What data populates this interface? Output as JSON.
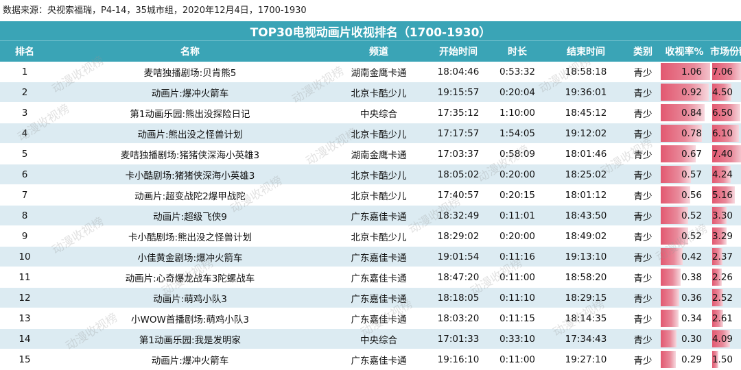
{
  "source": "数据来源：央视索福瑞，P4-14，35城市组，2020年12月4日，1700-1930",
  "title": "TOP30电视动画片收视排名（1700-1930）",
  "watermark": "动漫收视榜",
  "columns": {
    "rank": "排名",
    "name": "名称",
    "channel": "频道",
    "start": "开始时间",
    "duration": "时长",
    "end": "结束时间",
    "category": "类别",
    "rating": "收视率%",
    "share": "市场份额%"
  },
  "colors": {
    "header": "#3aa4b6",
    "stripe": "#dcebf2",
    "bar": "#e25870"
  },
  "rows": [
    {
      "rank": "1",
      "name": "麦咭独播剧场:贝肯熊5",
      "channel": "湖南金鹰卡通",
      "start": "18:04:46",
      "duration": "0:53:32",
      "end": "18:58:18",
      "category": "青少",
      "rating": "1.06",
      "share": "7.06"
    },
    {
      "rank": "2",
      "name": "动画片:爆冲火箭车",
      "channel": "北京卡酷少儿",
      "start": "19:15:57",
      "duration": "0:20:04",
      "end": "19:36:01",
      "category": "青少",
      "rating": "0.92",
      "share": "4.50"
    },
    {
      "rank": "3",
      "name": "第1动画乐园:熊出没探险日记",
      "channel": "中央综合",
      "start": "17:35:12",
      "duration": "1:10:00",
      "end": "18:45:12",
      "category": "青少",
      "rating": "0.84",
      "share": "6.50"
    },
    {
      "rank": "4",
      "name": "动画片:熊出没之怪兽计划",
      "channel": "北京卡酷少儿",
      "start": "17:17:57",
      "duration": "1:54:05",
      "end": "19:12:02",
      "category": "青少",
      "rating": "0.78",
      "share": "6.10"
    },
    {
      "rank": "5",
      "name": "麦咭独播剧场:猪猪侠深海小英雄3",
      "channel": "湖南金鹰卡通",
      "start": "17:03:37",
      "duration": "0:58:09",
      "end": "18:01:46",
      "category": "青少",
      "rating": "0.67",
      "share": "7.40"
    },
    {
      "rank": "6",
      "name": "卡小酷剧场:猪猪侠深海小英雄3",
      "channel": "北京卡酷少儿",
      "start": "18:05:02",
      "duration": "0:20:00",
      "end": "18:25:02",
      "category": "青少",
      "rating": "0.57",
      "share": "4.24"
    },
    {
      "rank": "7",
      "name": "动画片:超变战陀2爆甲战陀",
      "channel": "北京卡酷少儿",
      "start": "17:40:57",
      "duration": "0:20:15",
      "end": "18:01:12",
      "category": "青少",
      "rating": "0.56",
      "share": "5.16"
    },
    {
      "rank": "8",
      "name": "动画片:超级飞侠9",
      "channel": "广东嘉佳卡通",
      "start": "18:32:49",
      "duration": "0:11:01",
      "end": "18:43:50",
      "category": "青少",
      "rating": "0.52",
      "share": "3.30"
    },
    {
      "rank": "9",
      "name": "卡小酷剧场:熊出没之怪兽计划",
      "channel": "北京卡酷少儿",
      "start": "18:29:02",
      "duration": "0:20:00",
      "end": "18:49:02",
      "category": "青少",
      "rating": "0.52",
      "share": "3.29"
    },
    {
      "rank": "10",
      "name": "小佳黄金剧场:爆冲火箭车",
      "channel": "广东嘉佳卡通",
      "start": "19:01:54",
      "duration": "0:11:16",
      "end": "19:13:10",
      "category": "青少",
      "rating": "0.42",
      "share": "2.37"
    },
    {
      "rank": "11",
      "name": "动画片:心奇爆龙战车3陀螺战车",
      "channel": "广东嘉佳卡通",
      "start": "18:47:20",
      "duration": "0:11:00",
      "end": "18:58:20",
      "category": "青少",
      "rating": "0.38",
      "share": "2.26"
    },
    {
      "rank": "12",
      "name": "动画片:萌鸡小队3",
      "channel": "广东嘉佳卡通",
      "start": "18:18:05",
      "duration": "0:11:10",
      "end": "18:29:15",
      "category": "青少",
      "rating": "0.36",
      "share": "2.52"
    },
    {
      "rank": "13",
      "name": "小WOW首播剧场:萌鸡小队3",
      "channel": "广东嘉佳卡通",
      "start": "18:03:20",
      "duration": "0:11:15",
      "end": "18:14:35",
      "category": "青少",
      "rating": "0.34",
      "share": "2.61"
    },
    {
      "rank": "14",
      "name": "第1动画乐园:我是发明家",
      "channel": "中央综合",
      "start": "17:01:33",
      "duration": "0:33:10",
      "end": "17:34:43",
      "category": "青少",
      "rating": "0.30",
      "share": "4.09"
    },
    {
      "rank": "15",
      "name": "动画片:爆冲火箭车",
      "channel": "广东嘉佳卡通",
      "start": "19:16:10",
      "duration": "0:11:00",
      "end": "19:27:10",
      "category": "青少",
      "rating": "0.29",
      "share": "1.50"
    }
  ]
}
